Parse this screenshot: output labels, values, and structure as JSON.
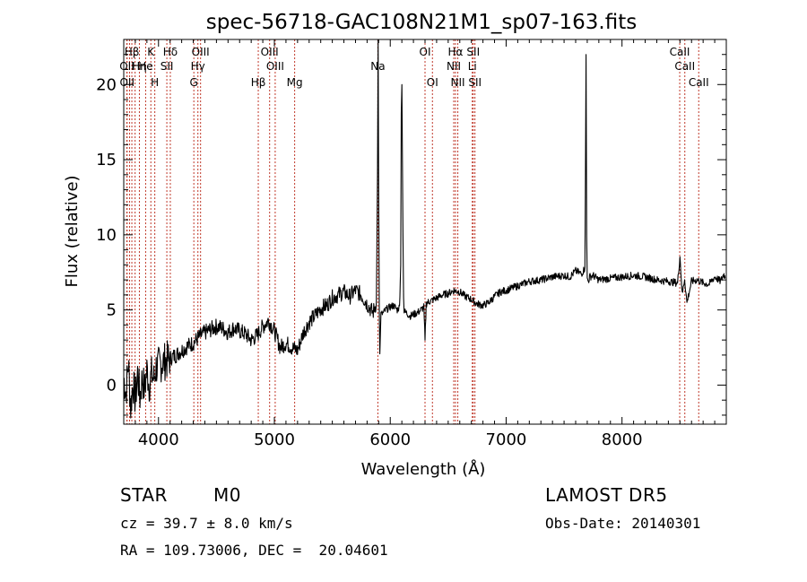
{
  "chart_data": {
    "type": "line",
    "title": "spec-56718-GAC108N21M1_sp07-163.fits",
    "xlabel": "Wavelength (Å)",
    "ylabel": "Flux (relative)",
    "xlim": [
      3700,
      8900
    ],
    "ylim": [
      -2.6,
      23.0
    ],
    "xticks": [
      4000,
      5000,
      6000,
      7000,
      8000
    ],
    "yticks": [
      0,
      5,
      10,
      15,
      20
    ],
    "grid": false,
    "series": [
      {
        "x": [
          3700,
          3720,
          3740,
          3760,
          3780,
          3800,
          3820,
          3840,
          3860,
          3880,
          3900,
          3920,
          3940,
          3960,
          3980,
          4000,
          4030,
          4060,
          4100,
          4150,
          4200,
          4250,
          4300,
          4350,
          4400,
          4450,
          4500,
          4550,
          4600,
          4650,
          4700,
          4750,
          4800,
          4850,
          4900,
          4950,
          5000,
          5050,
          5100,
          5150,
          5200,
          5250,
          5300,
          5350,
          5400,
          5450,
          5500,
          5550,
          5600,
          5650,
          5700,
          5750,
          5800,
          5850,
          5880,
          5890,
          5895,
          5900,
          5905,
          5910,
          5915,
          5920,
          5940,
          5960,
          5980,
          6000,
          6030,
          6060,
          6080,
          6090,
          6095,
          6100,
          6105,
          6110,
          6115,
          6120,
          6140,
          6170,
          6200,
          6250,
          6290,
          6300,
          6310,
          6320,
          6350,
          6400,
          6450,
          6500,
          6550,
          6600,
          6650,
          6700,
          6750,
          6800,
          6850,
          6900,
          6950,
          7000,
          7100,
          7200,
          7300,
          7400,
          7500,
          7550,
          7600,
          7650,
          7680,
          7690,
          7695,
          7700,
          7710,
          7720,
          7750,
          7800,
          7900,
          8000,
          8100,
          8200,
          8300,
          8400,
          8480,
          8500,
          8520,
          8540,
          8560,
          8600,
          8650,
          8700,
          8750,
          8800,
          8850,
          8880,
          8890
        ],
        "y": [
          0.5,
          -0.5,
          1.5,
          -1.5,
          0.2,
          -1.0,
          0.8,
          -0.8,
          0.5,
          -0.3,
          1.0,
          0.0,
          0.7,
          0.4,
          1.2,
          1.3,
          1.5,
          1.6,
          1.8,
          2.0,
          2.3,
          2.6,
          2.8,
          3.2,
          3.5,
          3.7,
          3.9,
          3.8,
          3.5,
          3.8,
          3.6,
          3.4,
          3.0,
          3.3,
          3.9,
          4.3,
          3.6,
          2.5,
          2.8,
          2.5,
          2.3,
          3.5,
          4.2,
          4.6,
          5.1,
          5.3,
          5.8,
          6.0,
          6.2,
          5.9,
          6.3,
          6.0,
          5.4,
          4.8,
          5.5,
          14.0,
          23.0,
          13.0,
          5.0,
          2.0,
          3.5,
          4.7,
          4.8,
          5.0,
          5.1,
          5.2,
          5.3,
          5.0,
          5.2,
          8.0,
          18.0,
          20.0,
          15.0,
          10.0,
          6.0,
          4.9,
          4.8,
          4.6,
          4.7,
          4.9,
          5.2,
          2.9,
          5.4,
          5.5,
          5.6,
          5.8,
          6.0,
          6.1,
          6.3,
          6.2,
          5.9,
          5.7,
          5.4,
          5.3,
          5.5,
          5.9,
          6.2,
          6.3,
          6.6,
          6.9,
          7.0,
          7.2,
          7.3,
          7.2,
          7.6,
          7.4,
          7.8,
          22.0,
          10.0,
          7.0,
          6.9,
          7.2,
          7.3,
          7.0,
          7.1,
          7.2,
          7.3,
          7.2,
          7.0,
          6.9,
          6.8,
          8.6,
          6.0,
          7.1,
          5.5,
          6.9,
          7.0,
          6.8,
          6.7,
          7.2,
          6.9,
          7.4,
          7.1
        ]
      }
    ]
  },
  "lines": {
    "row1": [
      {
        "label": "Hβ",
        "x": 3770
      },
      {
        "label": "K",
        "x": 3934
      },
      {
        "label": "Hδ",
        "x": 4102
      },
      {
        "label": "OIII",
        "x": 4363
      },
      {
        "label": "OIII",
        "x": 4959
      },
      {
        "label": "OI",
        "x": 6300
      },
      {
        "label": "Hα",
        "x": 6563
      },
      {
        "label": "SII",
        "x": 6716
      },
      {
        "label": "CaII",
        "x": 8498
      }
    ],
    "row2": [
      {
        "label": "OII",
        "x": 3727
      },
      {
        "label": "Hη",
        "x": 3835
      },
      {
        "label": "He",
        "x": 3889
      },
      {
        "label": "SII",
        "x": 4072
      },
      {
        "label": "Hγ",
        "x": 4340
      },
      {
        "label": "OIII",
        "x": 5007
      },
      {
        "label": "Na",
        "x": 5893
      },
      {
        "label": "NII",
        "x": 6548
      },
      {
        "label": "Li",
        "x": 6708
      },
      {
        "label": "CaII",
        "x": 8542
      }
    ],
    "row3": [
      {
        "label": "OII",
        "x": 3729
      },
      {
        "label": "H",
        "x": 3968
      },
      {
        "label": "G",
        "x": 4305
      },
      {
        "label": "Hβ",
        "x": 4861
      },
      {
        "label": "Mg",
        "x": 5175
      },
      {
        "label": "OI",
        "x": 6364
      },
      {
        "label": "NII",
        "x": 6583
      },
      {
        "label": "SII",
        "x": 6731
      },
      {
        "label": "CaII",
        "x": 8662
      }
    ],
    "extra_marker_x": [
      3798,
      3750
    ]
  },
  "info": {
    "class_label": "STAR",
    "subclass": "M0",
    "survey": "LAMOST DR5",
    "cz": "cz = 39.7 ± 8.0 km/s",
    "obs_date": "Obs-Date: 20140301",
    "radec": "RA = 109.73006, DEC =  20.04601"
  },
  "colors": {
    "line_marker": "#c0392b",
    "spectrum": "#000000"
  }
}
